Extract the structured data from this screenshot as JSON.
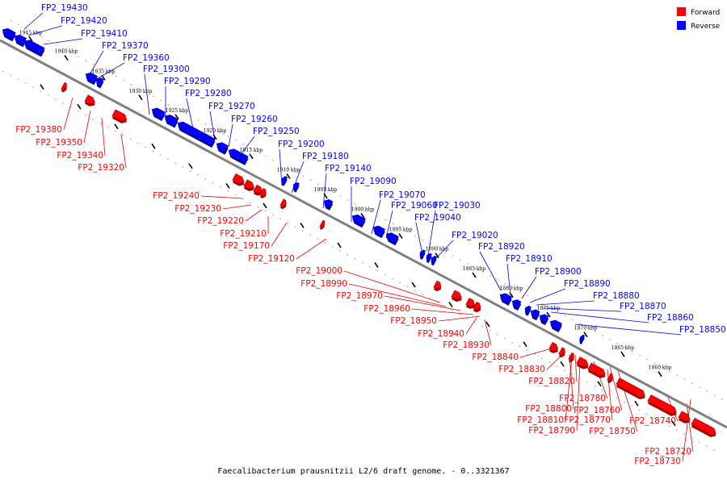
{
  "caption": "Faecalibacterium prausnitzii L2/6 draft genome. - 0..3321367",
  "legend": [
    {
      "label": "Forward",
      "color": "#ff0000"
    },
    {
      "label": "Reverse",
      "color": "#0000ff"
    }
  ],
  "colors": {
    "forward": "#ff0000",
    "forward_line": "#e60000",
    "reverse": "#0000ff",
    "reverse_line": "#0000e6",
    "backbone": "#808080"
  },
  "ticks": [
    "1945 kbp",
    "1940 kbp",
    "1935 kbp",
    "1930 kbp",
    "1925 kbp",
    "1920 kbp",
    "1915 kbp",
    "1910 kbp",
    "1905 kbp",
    "1900 kbp",
    "1895 kbp",
    "1890 kbp",
    "1885 kbp",
    "1880 kbp",
    "1875 kbp",
    "1870 kbp",
    "1865 kbp",
    "1860 kbp"
  ],
  "reverse_genes": [
    "FP2_19430",
    "FP2_19420",
    "FP2_19410",
    "FP2_19370",
    "FP2_19360",
    "FP2_19300",
    "FP2_19290",
    "FP2_19280",
    "FP2_19270",
    "FP2_19260",
    "FP2_19250",
    "FP2_19200",
    "FP2_19180",
    "FP2_19140",
    "FP2_19090",
    "FP2_19070",
    "FP2_19060",
    "FP2_19030",
    "FP2_19040",
    "FP2_19020",
    "FP2_18920",
    "FP2_18910",
    "FP2_18900",
    "FP2_18890",
    "FP2_18880",
    "FP2_18870",
    "FP2_18860",
    "FP2_18850"
  ],
  "forward_genes": [
    "FP2_19380",
    "FP2_19350",
    "FP2_19340",
    "FP2_19320",
    "FP2_19240",
    "FP2_19230",
    "FP2_19220",
    "FP2_19210",
    "FP2_19170",
    "FP2_19120",
    "FP2_19000",
    "FP2_18990",
    "FP2_18970",
    "FP2_18960",
    "FP2_18950",
    "FP2_18940",
    "FP2_18930",
    "FP2_18840",
    "FP2_18830",
    "FP2_18820",
    "FP2_18780",
    "FP2_18800",
    "FP2_18760",
    "FP2_18810",
    "FP2_18770",
    "FP2_18790",
    "FP2_18750",
    "FP2_18740",
    "FP2_18720",
    "FP2_18730"
  ]
}
